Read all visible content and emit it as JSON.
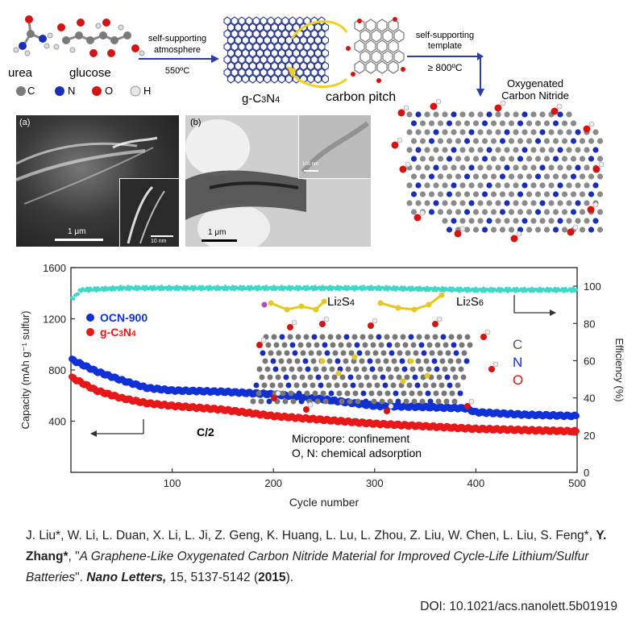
{
  "scheme": {
    "urea_label": "urea",
    "glucose_label": "glucose",
    "legend": [
      {
        "symbol": "C",
        "color": "#7a7a7a"
      },
      {
        "symbol": "N",
        "color": "#1a2fb8"
      },
      {
        "symbol": "O",
        "color": "#d41414"
      },
      {
        "symbol": "H",
        "color": "#e6e6e6"
      }
    ],
    "step1_top": "self-supporting",
    "step1_mid": "atmosphere",
    "step1_temp": "550ºC",
    "gcn_label": "g-C3N4",
    "pitch_label": "carbon pitch",
    "step2_top": "self-supporting",
    "step2_mid": "template",
    "step2_temp": "≥ 800ºC",
    "ocn_title_1": "Oxygenated",
    "ocn_title_2": "Carbon Nitride",
    "panel_a": "(a)",
    "panel_a_scale": "1 μm",
    "panel_a_inset_scale": "10 nm",
    "panel_b": "(b)",
    "panel_b_scale": "1 μm",
    "panel_b_inset_scale": "100 nm"
  },
  "chart_data": {
    "type": "scatter",
    "xlabel": "Cycle number",
    "ylabel_left": "Capacity (mAh g⁻¹ sulfur)",
    "ylabel_right": "Efficiency (%)",
    "xlim": [
      0,
      500
    ],
    "ylim_left": [
      0,
      1600
    ],
    "ylim_right": [
      0,
      110
    ],
    "xticks": [
      100,
      200,
      300,
      400,
      500
    ],
    "yticks_left": [
      400,
      800,
      1200,
      1600
    ],
    "yticks_right": [
      0,
      20,
      40,
      60,
      80,
      100
    ],
    "rate_label": "C/2",
    "legend_placement": "top-left",
    "series": [
      {
        "name": "OCN-900",
        "color": "#1030d8",
        "axis": "left",
        "x": [
          1,
          25,
          50,
          75,
          100,
          150,
          200,
          250,
          300,
          350,
          390,
          400,
          450,
          500
        ],
        "y": [
          880,
          790,
          720,
          660,
          640,
          630,
          610,
          570,
          520,
          510,
          500,
          470,
          450,
          440
        ]
      },
      {
        "name": "g-C3N4",
        "color": "#e81818",
        "axis": "left",
        "x": [
          1,
          25,
          50,
          75,
          100,
          150,
          200,
          250,
          300,
          350,
          400,
          450,
          500
        ],
        "y": [
          740,
          640,
          580,
          540,
          520,
          490,
          440,
          410,
          380,
          360,
          340,
          330,
          320
        ]
      },
      {
        "name": "Efficiency",
        "color": "#3fd8c8",
        "axis": "right",
        "x": [
          1,
          10,
          50,
          100,
          200,
          300,
          400,
          500
        ],
        "y": [
          93,
          98,
          99,
          99,
          99,
          99,
          98,
          98
        ]
      }
    ],
    "annotations": {
      "li2s4": "Li2S4",
      "li2s6": "Li2S6",
      "legend_c": "C",
      "legend_n": "N",
      "legend_o": "O",
      "mechanism_1": "Micropore: confinement",
      "mechanism_2": "O, N: chemical adsorption"
    }
  },
  "citation": {
    "authors_1": "J. Liu*, W. Li, L. Duan, X. Li, L. Ji, Z. Geng, K. Huang, L. Lu, L. Zhou, Z. Liu, W. Chen, L. Liu, S. Feng*, ",
    "authors_bold": "Y. Zhang*",
    "authors_2": ", \"",
    "title": "A Graphene-Like Oxygenated Carbon Nitride Material for Improved Cycle-Life Lithium/Sulfur Batteries",
    "after_title": "\". ",
    "journal": "Nano Letters,",
    "volume_pages": " 15, 5137-5142 (",
    "year": "2015",
    "close": ").",
    "doi": "DOI: 10.1021/acs.nanolett.5b01919"
  }
}
